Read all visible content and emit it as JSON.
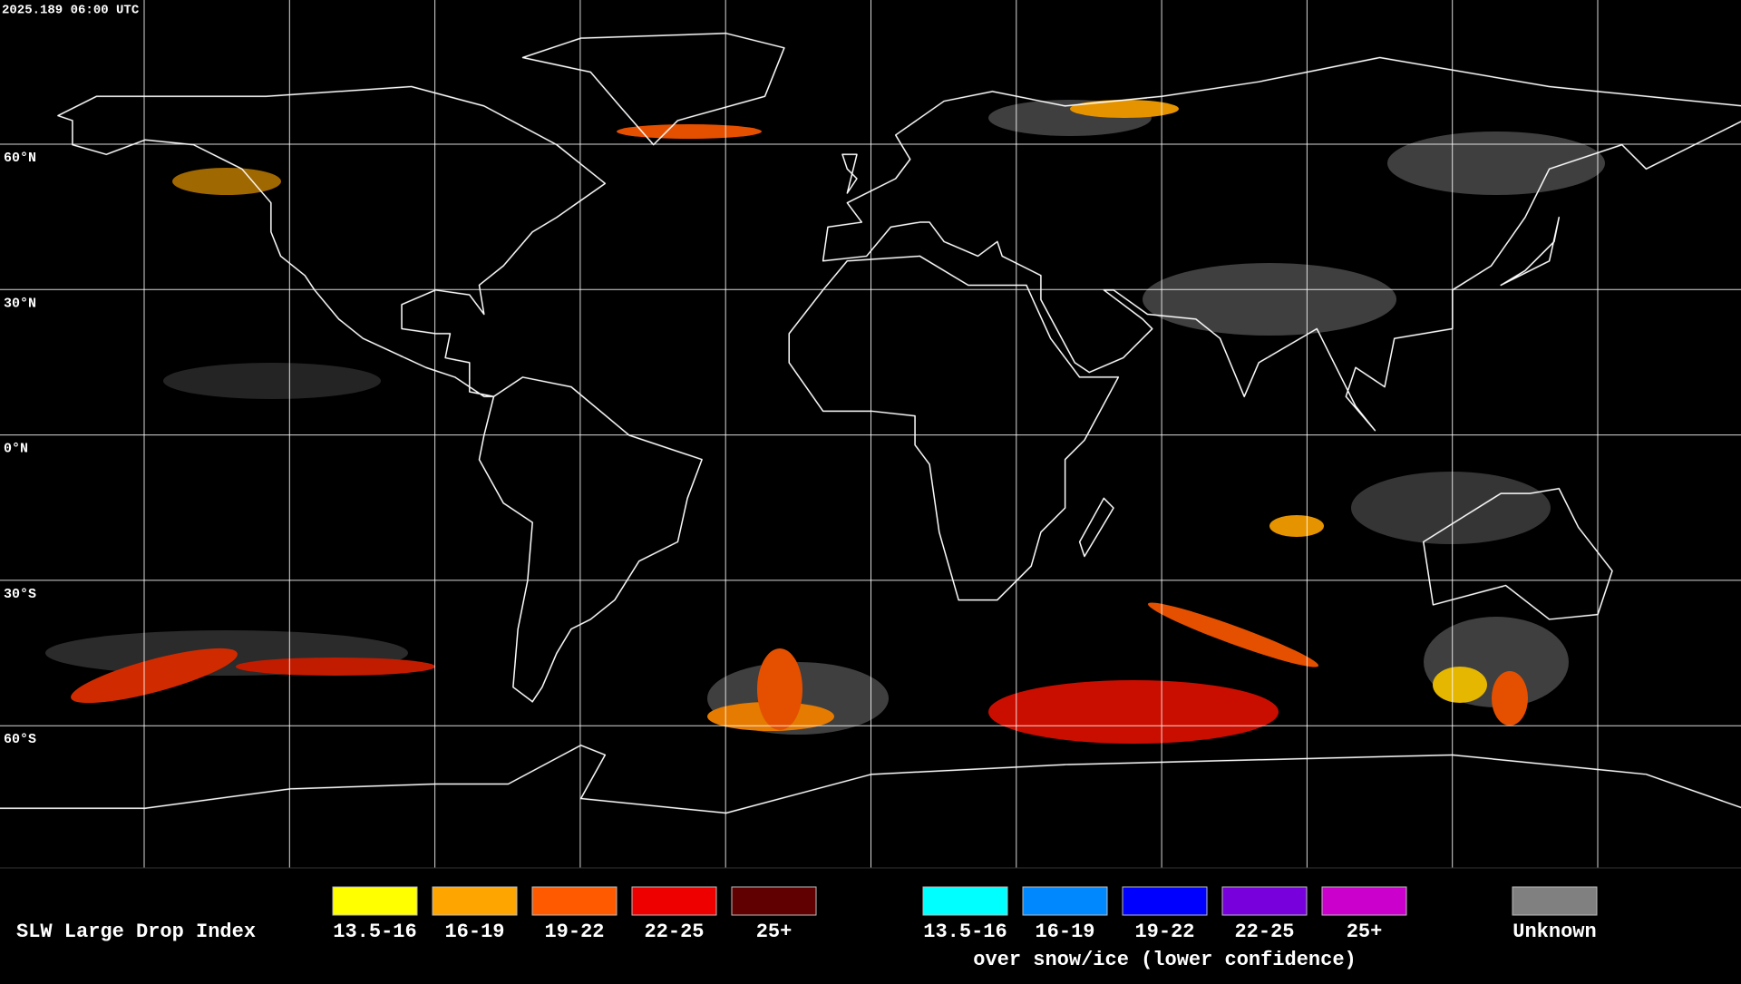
{
  "header": {
    "timestamp": "2025.189 06:00 UTC"
  },
  "map": {
    "latitude_labels": [
      "60°N",
      "30°N",
      "0°N",
      "30°S",
      "60°S"
    ]
  },
  "legend": {
    "title": "SLW Large Drop Index",
    "groups": [
      {
        "items": [
          {
            "label": "13.5-16",
            "color": "#ffff00"
          },
          {
            "label": "16-19",
            "color": "#ffa500"
          },
          {
            "label": "19-22",
            "color": "#ff5a00"
          },
          {
            "label": "22-25",
            "color": "#ee0000"
          },
          {
            "label": "25+",
            "color": "#600000"
          }
        ]
      },
      {
        "items": [
          {
            "label": "13.5-16",
            "color": "#00ffff"
          },
          {
            "label": "16-19",
            "color": "#0088ff"
          },
          {
            "label": "19-22",
            "color": "#0000ff"
          },
          {
            "label": "22-25",
            "color": "#7700dd"
          },
          {
            "label": "25+",
            "color": "#cc00cc"
          }
        ],
        "note": "over snow/ice (lower confidence)"
      }
    ],
    "unknown": {
      "label": "Unknown",
      "color": "#808080"
    }
  }
}
